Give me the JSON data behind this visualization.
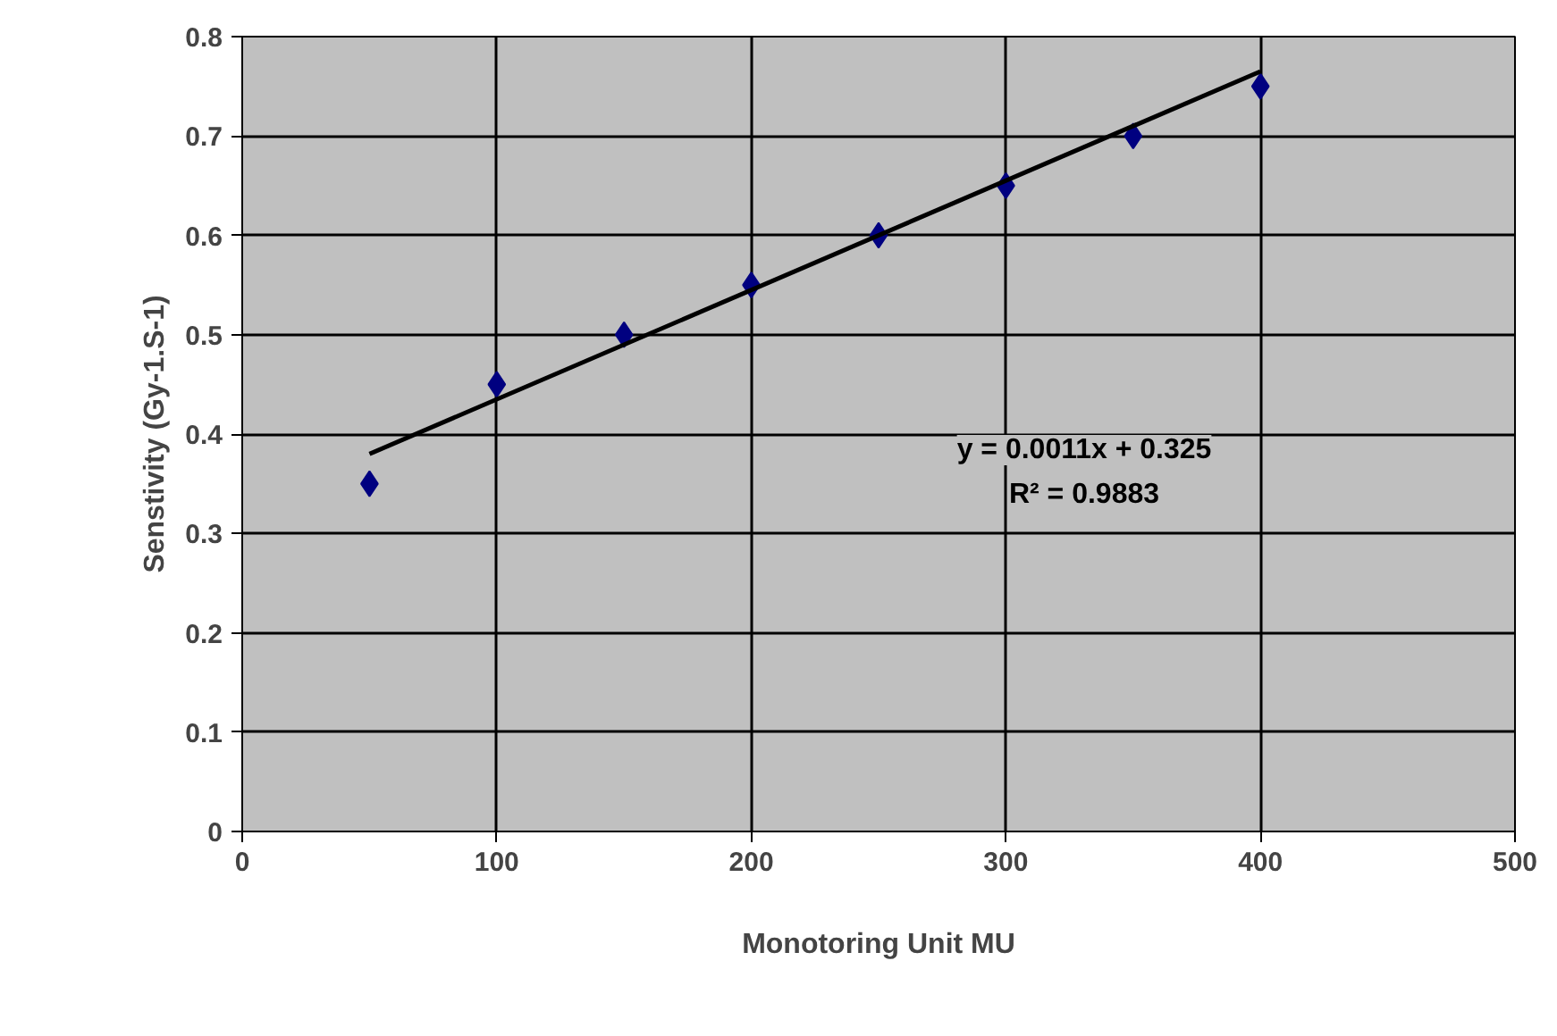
{
  "chart_data": {
    "type": "scatter",
    "xlabel": "Monotoring Unit MU",
    "ylabel": "Senstivity (Gy-1.S-1)",
    "xlim": [
      0,
      500
    ],
    "ylim": [
      0,
      0.8
    ],
    "xticks": [
      0,
      100,
      200,
      300,
      400,
      500
    ],
    "yticks": [
      0,
      0.1,
      0.2,
      0.3,
      0.4,
      0.5,
      0.6,
      0.7,
      0.8
    ],
    "grid": true,
    "series": [
      {
        "color": "#000080",
        "marker": "diamond",
        "x": [
          50,
          100,
          150,
          200,
          250,
          300,
          350,
          400
        ],
        "values": [
          0.35,
          0.45,
          0.5,
          0.55,
          0.6,
          0.65,
          0.7,
          0.75
        ]
      },
      {
        "type": "line",
        "color": "#000000",
        "line_style": "solid",
        "x": [
          50,
          400
        ],
        "values": [
          0.38,
          0.765
        ]
      }
    ],
    "annotations": [
      "y = 0.0011x + 0.325",
      "R² = 0.9883"
    ]
  }
}
